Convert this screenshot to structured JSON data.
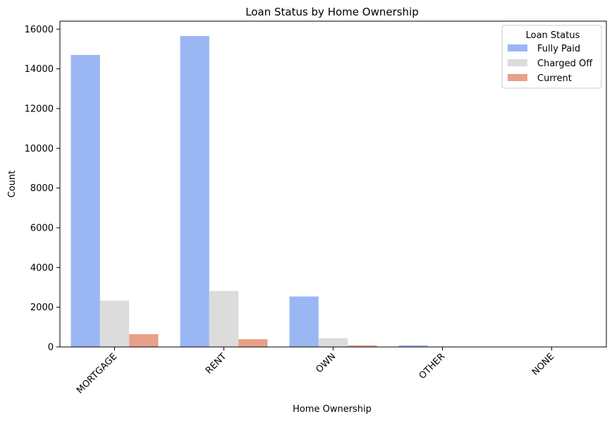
{
  "chart_data": {
    "type": "bar",
    "title": "Loan Status by Home Ownership",
    "xlabel": "Home Ownership",
    "ylabel": "Count",
    "categories": [
      "MORTGAGE",
      "RENT",
      "OWN",
      "OTHER",
      "NONE"
    ],
    "ylim": [
      0,
      16400
    ],
    "yticks": [
      0,
      2000,
      4000,
      6000,
      8000,
      10000,
      12000,
      14000,
      16000
    ],
    "grid": false,
    "legend": {
      "title": "Loan Status",
      "placement": "top-right"
    },
    "series": [
      {
        "name": "Fully Paid",
        "color": "#9bb7f3",
        "values": [
          14700,
          15650,
          2540,
          80,
          5
        ]
      },
      {
        "name": "Charged Off",
        "color": "#dcdcdc",
        "values": [
          2330,
          2820,
          440,
          20,
          1
        ]
      },
      {
        "name": "Current",
        "color": "#e8a088",
        "values": [
          640,
          390,
          80,
          0,
          0
        ]
      }
    ]
  }
}
